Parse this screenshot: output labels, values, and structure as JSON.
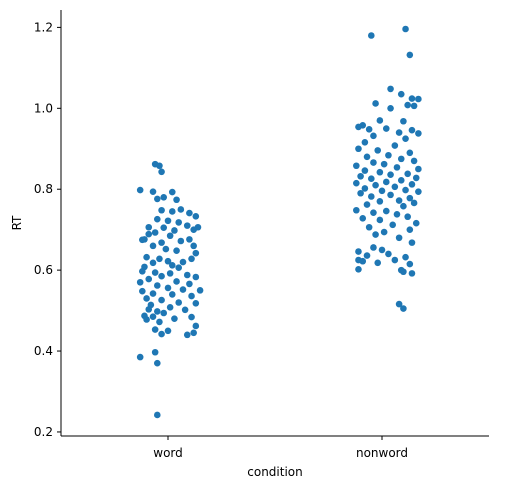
{
  "chart_data": {
    "type": "scatter",
    "subtype": "strip",
    "title": "",
    "xlabel": "condition",
    "ylabel": "RT",
    "categories": [
      "word",
      "nonword"
    ],
    "ylim": [
      0.19,
      1.243
    ],
    "yticks": [
      0.2,
      0.4,
      0.6,
      0.8,
      1.0,
      1.2
    ],
    "ytick_labels": [
      "0.2",
      "0.4",
      "0.6",
      "0.8",
      "1.0",
      "1.2"
    ],
    "grid": false,
    "marker_color": "#1f77b4",
    "series": [
      {
        "name": "word",
        "category": "word",
        "points": [
          [
            -0.06,
            0.862
          ],
          [
            -0.04,
            0.858
          ],
          [
            -0.03,
            0.843
          ],
          [
            -0.13,
            0.798
          ],
          [
            -0.07,
            0.794
          ],
          [
            0.02,
            0.793
          ],
          [
            -0.02,
            0.78
          ],
          [
            0.04,
            0.774
          ],
          [
            -0.05,
            0.776
          ],
          [
            0.1,
            0.741
          ],
          [
            -0.03,
            0.748
          ],
          [
            0.02,
            0.745
          ],
          [
            0.06,
            0.75
          ],
          [
            0.13,
            0.733
          ],
          [
            -0.05,
            0.726
          ],
          [
            0.0,
            0.722
          ],
          [
            0.05,
            0.718
          ],
          [
            0.09,
            0.71
          ],
          [
            0.14,
            0.706
          ],
          [
            0.12,
            0.7
          ],
          [
            -0.09,
            0.706
          ],
          [
            -0.02,
            0.705
          ],
          [
            0.03,
            0.698
          ],
          [
            -0.06,
            0.693
          ],
          [
            -0.09,
            0.689
          ],
          [
            -0.11,
            0.676
          ],
          [
            -0.12,
            0.675
          ],
          [
            0.01,
            0.685
          ],
          [
            0.06,
            0.672
          ],
          [
            -0.03,
            0.668
          ],
          [
            0.1,
            0.676
          ],
          [
            0.12,
            0.66
          ],
          [
            -0.07,
            0.66
          ],
          [
            -0.01,
            0.652
          ],
          [
            0.04,
            0.648
          ],
          [
            0.13,
            0.642
          ],
          [
            -0.1,
            0.632
          ],
          [
            -0.04,
            0.628
          ],
          [
            0.0,
            0.622
          ],
          [
            0.07,
            0.62
          ],
          [
            0.11,
            0.628
          ],
          [
            -0.07,
            0.618
          ],
          [
            0.02,
            0.612
          ],
          [
            -0.11,
            0.608
          ],
          [
            0.05,
            0.606
          ],
          [
            -0.12,
            0.597
          ],
          [
            -0.06,
            0.594
          ],
          [
            0.01,
            0.592
          ],
          [
            0.09,
            0.588
          ],
          [
            0.13,
            0.583
          ],
          [
            -0.03,
            0.585
          ],
          [
            -0.09,
            0.578
          ],
          [
            0.04,
            0.572
          ],
          [
            -0.13,
            0.57
          ],
          [
            0.1,
            0.566
          ],
          [
            -0.05,
            0.562
          ],
          [
            0.0,
            0.556
          ],
          [
            0.07,
            0.552
          ],
          [
            0.15,
            0.55
          ],
          [
            -0.12,
            0.548
          ],
          [
            -0.07,
            0.542
          ],
          [
            0.02,
            0.54
          ],
          [
            0.11,
            0.536
          ],
          [
            -0.1,
            0.53
          ],
          [
            -0.03,
            0.526
          ],
          [
            0.05,
            0.52
          ],
          [
            -0.08,
            0.514
          ],
          [
            0.13,
            0.518
          ],
          [
            0.01,
            0.508
          ],
          [
            -0.09,
            0.503
          ],
          [
            -0.05,
            0.498
          ],
          [
            -0.02,
            0.494
          ],
          [
            0.08,
            0.502
          ],
          [
            -0.11,
            0.487
          ],
          [
            -0.07,
            0.485
          ],
          [
            0.03,
            0.48
          ],
          [
            0.11,
            0.484
          ],
          [
            -0.1,
            0.478
          ],
          [
            -0.04,
            0.472
          ],
          [
            0.13,
            0.462
          ],
          [
            -0.06,
            0.453
          ],
          [
            0.0,
            0.45
          ],
          [
            -0.03,
            0.442
          ],
          [
            0.09,
            0.44
          ],
          [
            0.12,
            0.445
          ],
          [
            -0.06,
            0.397
          ],
          [
            -0.13,
            0.385
          ],
          [
            -0.05,
            0.37
          ],
          [
            -0.05,
            0.242
          ]
        ]
      },
      {
        "name": "nonword",
        "category": "nonword",
        "points": [
          [
            0.11,
            1.196
          ],
          [
            -0.05,
            1.18
          ],
          [
            0.13,
            1.132
          ],
          [
            0.04,
            1.048
          ],
          [
            0.09,
            1.035
          ],
          [
            0.14,
            1.024
          ],
          [
            0.17,
            1.023
          ],
          [
            -0.03,
            1.012
          ],
          [
            0.12,
            1.008
          ],
          [
            0.15,
            1.006
          ],
          [
            0.04,
            1.0
          ],
          [
            0.1,
            0.968
          ],
          [
            -0.01,
            0.97
          ],
          [
            -0.09,
            0.958
          ],
          [
            -0.11,
            0.954
          ],
          [
            0.02,
            0.95
          ],
          [
            -0.06,
            0.948
          ],
          [
            0.14,
            0.946
          ],
          [
            0.08,
            0.94
          ],
          [
            0.17,
            0.938
          ],
          [
            -0.04,
            0.932
          ],
          [
            0.11,
            0.925
          ],
          [
            -0.08,
            0.916
          ],
          [
            0.06,
            0.908
          ],
          [
            -0.11,
            0.9
          ],
          [
            -0.02,
            0.896
          ],
          [
            0.13,
            0.89
          ],
          [
            0.03,
            0.884
          ],
          [
            -0.07,
            0.88
          ],
          [
            0.09,
            0.875
          ],
          [
            0.15,
            0.87
          ],
          [
            -0.04,
            0.866
          ],
          [
            0.01,
            0.862
          ],
          [
            -0.12,
            0.858
          ],
          [
            0.07,
            0.854
          ],
          [
            0.17,
            0.85
          ],
          [
            -0.08,
            0.846
          ],
          [
            -0.01,
            0.842
          ],
          [
            0.12,
            0.838
          ],
          [
            0.04,
            0.836
          ],
          [
            -0.1,
            0.832
          ],
          [
            0.16,
            0.828
          ],
          [
            -0.05,
            0.826
          ],
          [
            0.09,
            0.822
          ],
          [
            0.02,
            0.818
          ],
          [
            -0.12,
            0.815
          ],
          [
            0.14,
            0.812
          ],
          [
            -0.03,
            0.81
          ],
          [
            0.06,
            0.806
          ],
          [
            -0.08,
            0.802
          ],
          [
            0.11,
            0.798
          ],
          [
            0.0,
            0.796
          ],
          [
            0.17,
            0.794
          ],
          [
            -0.1,
            0.79
          ],
          [
            0.04,
            0.786
          ],
          [
            -0.05,
            0.782
          ],
          [
            0.13,
            0.778
          ],
          [
            0.08,
            0.772
          ],
          [
            -0.01,
            0.77
          ],
          [
            0.15,
            0.766
          ],
          [
            -0.07,
            0.762
          ],
          [
            0.1,
            0.758
          ],
          [
            -0.12,
            0.748
          ],
          [
            0.02,
            0.746
          ],
          [
            -0.04,
            0.742
          ],
          [
            0.07,
            0.738
          ],
          [
            0.12,
            0.732
          ],
          [
            -0.09,
            0.728
          ],
          [
            -0.01,
            0.724
          ],
          [
            0.16,
            0.716
          ],
          [
            0.05,
            0.712
          ],
          [
            -0.06,
            0.706
          ],
          [
            0.13,
            0.7
          ],
          [
            0.01,
            0.694
          ],
          [
            -0.03,
            0.688
          ],
          [
            0.08,
            0.68
          ],
          [
            0.14,
            0.668
          ],
          [
            -0.04,
            0.656
          ],
          [
            0.0,
            0.65
          ],
          [
            -0.11,
            0.646
          ],
          [
            0.03,
            0.64
          ],
          [
            -0.07,
            0.636
          ],
          [
            0.11,
            0.632
          ],
          [
            0.06,
            0.625
          ],
          [
            -0.11,
            0.625
          ],
          [
            -0.09,
            0.622
          ],
          [
            -0.02,
            0.618
          ],
          [
            0.13,
            0.615
          ],
          [
            0.09,
            0.6
          ],
          [
            0.1,
            0.596
          ],
          [
            0.14,
            0.592
          ],
          [
            -0.11,
            0.602
          ],
          [
            0.08,
            0.516
          ],
          [
            0.1,
            0.505
          ]
        ]
      }
    ]
  }
}
